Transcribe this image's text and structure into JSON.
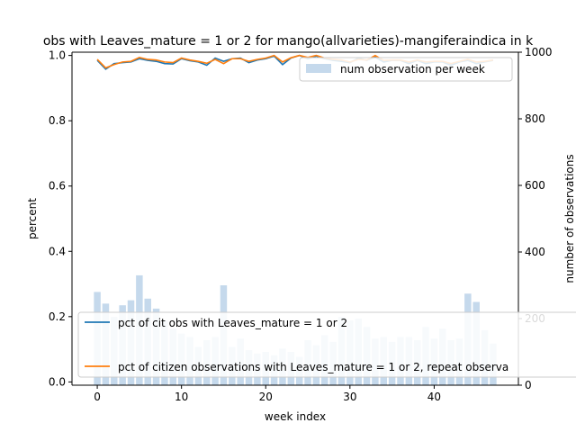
{
  "chart_data": {
    "type": "bar+line",
    "title": "obs with Leaves_mature = 1 or 2 for mango(allvarieties)-mangiferaindica in k",
    "xlabel": "week index",
    "ylabel_left": "percent",
    "ylabel_right": "number of observations",
    "xlim": [
      -3,
      50
    ],
    "ylim_left": [
      -0.01,
      1.01
    ],
    "ylim_right": [
      0,
      1000
    ],
    "xticks": [
      0,
      10,
      20,
      30,
      40
    ],
    "xtick_labels": [
      "0",
      "10",
      "20",
      "30",
      "40"
    ],
    "yticks_left": [
      0.0,
      0.2,
      0.4,
      0.6,
      0.8,
      1.0
    ],
    "ytick_labels_left": [
      "0.0",
      "0.2",
      "0.4",
      "0.6",
      "0.8",
      "1.0"
    ],
    "yticks_right": [
      0,
      200,
      400,
      600,
      800,
      1000
    ],
    "ytick_labels_right": [
      "0",
      "200",
      "400",
      "600",
      "800",
      "1000"
    ],
    "colors": {
      "bars": "#c5d9ec",
      "line1": "#1f77b4",
      "line2": "#ff7f0e"
    },
    "bars": {
      "name": "num observation per week",
      "x": [
        0,
        1,
        2,
        3,
        4,
        5,
        6,
        7,
        8,
        9,
        10,
        11,
        12,
        13,
        14,
        15,
        16,
        17,
        18,
        19,
        20,
        21,
        22,
        23,
        24,
        25,
        26,
        27,
        28,
        29,
        30,
        31,
        32,
        33,
        34,
        35,
        36,
        37,
        38,
        39,
        40,
        41,
        42,
        43,
        44,
        45,
        46,
        47
      ],
      "values": [
        280,
        245,
        205,
        240,
        255,
        330,
        260,
        230,
        195,
        170,
        155,
        145,
        115,
        135,
        145,
        300,
        115,
        140,
        105,
        95,
        100,
        90,
        110,
        100,
        85,
        135,
        120,
        150,
        130,
        205,
        195,
        200,
        175,
        140,
        145,
        130,
        145,
        145,
        135,
        175,
        140,
        170,
        135,
        140,
        275,
        250,
        165,
        125
      ]
    },
    "series": [
      {
        "name": "pct of cit obs with Leaves_mature = 1 or 2",
        "x": [
          0,
          1,
          2,
          3,
          4,
          5,
          6,
          7,
          8,
          9,
          10,
          11,
          12,
          13,
          14,
          15,
          16,
          17,
          18,
          19,
          20,
          21,
          22,
          23,
          24,
          25,
          26,
          27,
          28,
          29,
          30,
          31,
          32,
          33,
          34,
          35,
          36,
          37,
          38,
          39,
          40,
          41,
          42,
          43,
          44,
          45,
          46,
          47
        ],
        "values": [
          0.985,
          0.958,
          0.975,
          0.978,
          0.98,
          0.99,
          0.985,
          0.982,
          0.975,
          0.974,
          0.99,
          0.984,
          0.98,
          0.97,
          0.992,
          0.982,
          0.99,
          0.992,
          0.978,
          0.986,
          0.99,
          0.998,
          0.972,
          0.992,
          1.0,
          0.99,
          0.998,
          0.99,
          0.985,
          0.982,
          0.978,
          0.992,
          0.985,
          0.995,
          0.98,
          0.985,
          0.985,
          0.975,
          0.985,
          0.975,
          0.98,
          0.98,
          0.97,
          0.98,
          0.985,
          0.975,
          0.98,
          0.985
        ]
      },
      {
        "name": "pct of citizen observations with Leaves_mature = 1 or 2, repeat observa",
        "x": [
          0,
          1,
          2,
          3,
          4,
          5,
          6,
          7,
          8,
          9,
          10,
          11,
          12,
          13,
          14,
          15,
          16,
          17,
          18,
          19,
          20,
          21,
          22,
          23,
          24,
          25,
          26,
          27,
          28,
          29,
          30,
          31,
          32,
          33,
          34,
          35,
          36,
          37,
          38,
          39,
          40,
          41,
          42,
          43,
          44,
          45,
          46,
          47
        ],
        "values": [
          0.988,
          0.962,
          0.972,
          0.98,
          0.982,
          0.994,
          0.988,
          0.986,
          0.98,
          0.978,
          0.992,
          0.986,
          0.982,
          0.976,
          0.988,
          0.975,
          0.99,
          0.99,
          0.982,
          0.988,
          0.992,
          1.0,
          0.98,
          0.993,
          1.0,
          0.994,
          1.0,
          0.992,
          0.988,
          0.986,
          0.98,
          0.988,
          0.986,
          1.0,
          0.985,
          0.986,
          0.986,
          0.98,
          0.986,
          0.98,
          0.982,
          0.982,
          0.975,
          0.982,
          0.988,
          0.98,
          0.982,
          0.986
        ]
      }
    ],
    "legend_bars_placement": "top-right",
    "legend_lines_placement": "lower-left"
  }
}
